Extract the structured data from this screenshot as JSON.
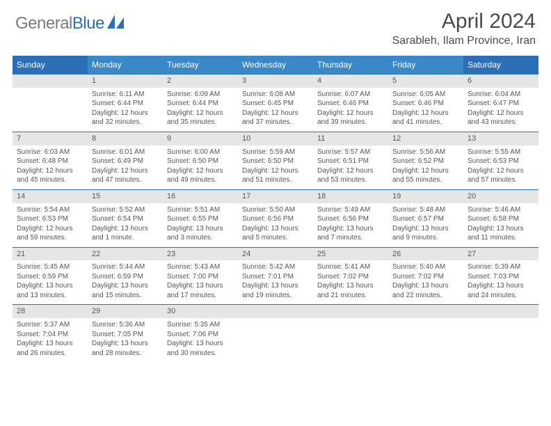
{
  "logo": {
    "text1": "General",
    "text2": "Blue"
  },
  "title": "April 2024",
  "location": "Sarableh, Ilam Province, Iran",
  "colors": {
    "header_weekday_bg": "#3b88c9",
    "header_weekend_bg": "#2d6fb6",
    "header_fg": "#ffffff",
    "daynum_bg": "#e6e6e6",
    "row_border": "#2d6fb6",
    "text": "#555555",
    "logo_gray": "#7a7a7a",
    "logo_blue": "#2d6fb6"
  },
  "day_headers": [
    "Sunday",
    "Monday",
    "Tuesday",
    "Wednesday",
    "Thursday",
    "Friday",
    "Saturday"
  ],
  "weeks": [
    {
      "nums": [
        "",
        "1",
        "2",
        "3",
        "4",
        "5",
        "6"
      ],
      "cells": [
        null,
        {
          "sr": "Sunrise: 6:11 AM",
          "ss": "Sunset: 6:44 PM",
          "d1": "Daylight: 12 hours",
          "d2": "and 32 minutes."
        },
        {
          "sr": "Sunrise: 6:09 AM",
          "ss": "Sunset: 6:44 PM",
          "d1": "Daylight: 12 hours",
          "d2": "and 35 minutes."
        },
        {
          "sr": "Sunrise: 6:08 AM",
          "ss": "Sunset: 6:45 PM",
          "d1": "Daylight: 12 hours",
          "d2": "and 37 minutes."
        },
        {
          "sr": "Sunrise: 6:07 AM",
          "ss": "Sunset: 6:46 PM",
          "d1": "Daylight: 12 hours",
          "d2": "and 39 minutes."
        },
        {
          "sr": "Sunrise: 6:05 AM",
          "ss": "Sunset: 6:46 PM",
          "d1": "Daylight: 12 hours",
          "d2": "and 41 minutes."
        },
        {
          "sr": "Sunrise: 6:04 AM",
          "ss": "Sunset: 6:47 PM",
          "d1": "Daylight: 12 hours",
          "d2": "and 43 minutes."
        }
      ]
    },
    {
      "nums": [
        "7",
        "8",
        "9",
        "10",
        "11",
        "12",
        "13"
      ],
      "cells": [
        {
          "sr": "Sunrise: 6:03 AM",
          "ss": "Sunset: 6:48 PM",
          "d1": "Daylight: 12 hours",
          "d2": "and 45 minutes."
        },
        {
          "sr": "Sunrise: 6:01 AM",
          "ss": "Sunset: 6:49 PM",
          "d1": "Daylight: 12 hours",
          "d2": "and 47 minutes."
        },
        {
          "sr": "Sunrise: 6:00 AM",
          "ss": "Sunset: 6:50 PM",
          "d1": "Daylight: 12 hours",
          "d2": "and 49 minutes."
        },
        {
          "sr": "Sunrise: 5:59 AM",
          "ss": "Sunset: 6:50 PM",
          "d1": "Daylight: 12 hours",
          "d2": "and 51 minutes."
        },
        {
          "sr": "Sunrise: 5:57 AM",
          "ss": "Sunset: 6:51 PM",
          "d1": "Daylight: 12 hours",
          "d2": "and 53 minutes."
        },
        {
          "sr": "Sunrise: 5:56 AM",
          "ss": "Sunset: 6:52 PM",
          "d1": "Daylight: 12 hours",
          "d2": "and 55 minutes."
        },
        {
          "sr": "Sunrise: 5:55 AM",
          "ss": "Sunset: 6:53 PM",
          "d1": "Daylight: 12 hours",
          "d2": "and 57 minutes."
        }
      ]
    },
    {
      "nums": [
        "14",
        "15",
        "16",
        "17",
        "18",
        "19",
        "20"
      ],
      "cells": [
        {
          "sr": "Sunrise: 5:54 AM",
          "ss": "Sunset: 6:53 PM",
          "d1": "Daylight: 12 hours",
          "d2": "and 59 minutes."
        },
        {
          "sr": "Sunrise: 5:52 AM",
          "ss": "Sunset: 6:54 PM",
          "d1": "Daylight: 13 hours",
          "d2": "and 1 minute."
        },
        {
          "sr": "Sunrise: 5:51 AM",
          "ss": "Sunset: 6:55 PM",
          "d1": "Daylight: 13 hours",
          "d2": "and 3 minutes."
        },
        {
          "sr": "Sunrise: 5:50 AM",
          "ss": "Sunset: 6:56 PM",
          "d1": "Daylight: 13 hours",
          "d2": "and 5 minutes."
        },
        {
          "sr": "Sunrise: 5:49 AM",
          "ss": "Sunset: 6:56 PM",
          "d1": "Daylight: 13 hours",
          "d2": "and 7 minutes."
        },
        {
          "sr": "Sunrise: 5:48 AM",
          "ss": "Sunset: 6:57 PM",
          "d1": "Daylight: 13 hours",
          "d2": "and 9 minutes."
        },
        {
          "sr": "Sunrise: 5:46 AM",
          "ss": "Sunset: 6:58 PM",
          "d1": "Daylight: 13 hours",
          "d2": "and 11 minutes."
        }
      ]
    },
    {
      "nums": [
        "21",
        "22",
        "23",
        "24",
        "25",
        "26",
        "27"
      ],
      "cells": [
        {
          "sr": "Sunrise: 5:45 AM",
          "ss": "Sunset: 6:59 PM",
          "d1": "Daylight: 13 hours",
          "d2": "and 13 minutes."
        },
        {
          "sr": "Sunrise: 5:44 AM",
          "ss": "Sunset: 6:59 PM",
          "d1": "Daylight: 13 hours",
          "d2": "and 15 minutes."
        },
        {
          "sr": "Sunrise: 5:43 AM",
          "ss": "Sunset: 7:00 PM",
          "d1": "Daylight: 13 hours",
          "d2": "and 17 minutes."
        },
        {
          "sr": "Sunrise: 5:42 AM",
          "ss": "Sunset: 7:01 PM",
          "d1": "Daylight: 13 hours",
          "d2": "and 19 minutes."
        },
        {
          "sr": "Sunrise: 5:41 AM",
          "ss": "Sunset: 7:02 PM",
          "d1": "Daylight: 13 hours",
          "d2": "and 21 minutes."
        },
        {
          "sr": "Sunrise: 5:40 AM",
          "ss": "Sunset: 7:02 PM",
          "d1": "Daylight: 13 hours",
          "d2": "and 22 minutes."
        },
        {
          "sr": "Sunrise: 5:39 AM",
          "ss": "Sunset: 7:03 PM",
          "d1": "Daylight: 13 hours",
          "d2": "and 24 minutes."
        }
      ]
    },
    {
      "nums": [
        "28",
        "29",
        "30",
        "",
        "",
        "",
        ""
      ],
      "cells": [
        {
          "sr": "Sunrise: 5:37 AM",
          "ss": "Sunset: 7:04 PM",
          "d1": "Daylight: 13 hours",
          "d2": "and 26 minutes."
        },
        {
          "sr": "Sunrise: 5:36 AM",
          "ss": "Sunset: 7:05 PM",
          "d1": "Daylight: 13 hours",
          "d2": "and 28 minutes."
        },
        {
          "sr": "Sunrise: 5:35 AM",
          "ss": "Sunset: 7:06 PM",
          "d1": "Daylight: 13 hours",
          "d2": "and 30 minutes."
        },
        null,
        null,
        null,
        null
      ]
    }
  ]
}
